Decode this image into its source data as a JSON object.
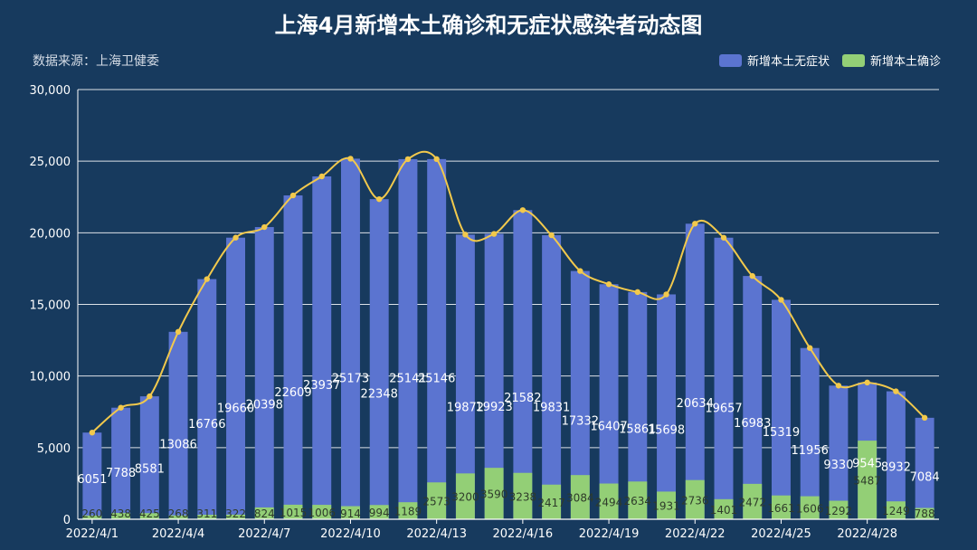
{
  "title": "上海4月新增本土确诊和无症状感染者动态图",
  "source": "数据来源：上海卫健委",
  "colors": {
    "background": "#173a5e",
    "asymptomatic": "#5b74d0",
    "confirmed": "#93cf76",
    "line": "#f2c94c",
    "grid": "#ffffff"
  },
  "chart_data": {
    "type": "bar",
    "stacked": true,
    "title": "上海4月新增本土确诊和无症状感染者动态图",
    "legend": [
      "新增本土无症状",
      "新增本土确诊"
    ],
    "legend_position": "top-right",
    "ylim": [
      0,
      30000
    ],
    "yticks": [
      "0",
      "5,000",
      "10,000",
      "15,000",
      "20,000",
      "25,000",
      "30,000"
    ],
    "ytick_values": [
      0,
      5000,
      10000,
      15000,
      20000,
      25000,
      30000
    ],
    "categories": [
      "2022/4/1",
      "2022/4/2",
      "2022/4/3",
      "2022/4/4",
      "2022/4/5",
      "2022/4/6",
      "2022/4/7",
      "2022/4/8",
      "2022/4/9",
      "2022/4/10",
      "2022/4/11",
      "2022/4/12",
      "2022/4/13",
      "2022/4/14",
      "2022/4/15",
      "2022/4/16",
      "2022/4/17",
      "2022/4/18",
      "2022/4/19",
      "2022/4/20",
      "2022/4/21",
      "2022/4/22",
      "2022/4/23",
      "2022/4/24",
      "2022/4/25",
      "2022/4/26",
      "2022/4/27",
      "2022/4/28",
      "2022/4/29",
      "2022/4/30"
    ],
    "xtick_labels": [
      "2022/4/1",
      "2022/4/4",
      "2022/4/7",
      "2022/4/10",
      "2022/4/13",
      "2022/4/16",
      "2022/4/19",
      "2022/4/22",
      "2022/4/25",
      "2022/4/28"
    ],
    "xtick_indices": [
      0,
      3,
      6,
      9,
      12,
      15,
      18,
      21,
      24,
      27
    ],
    "series": [
      {
        "name": "新增本土无症状",
        "values": [
          6051,
          7788,
          8581,
          13086,
          16766,
          19660,
          20398,
          22609,
          23937,
          25173,
          22348,
          25141,
          25146,
          19872,
          19923,
          21582,
          19831,
          17332,
          16407,
          15861,
          15698,
          20634,
          19657,
          16983,
          15319,
          11956,
          9330,
          9545,
          8932,
          7084
        ],
        "labels": [
          "6051",
          "7788",
          "8581",
          "13086",
          "16766",
          "19660",
          "20398",
          "22609",
          "23937",
          "25173",
          "22348",
          "25141",
          "25146",
          "19872",
          "19923",
          "21582",
          "19831",
          "17332",
          "16407",
          "15861",
          "15698",
          "20634",
          "19657",
          "16983",
          "15319",
          "11956",
          "9330",
          "9545",
          "8932",
          "7084"
        ]
      },
      {
        "name": "新增本土确诊",
        "values": [
          260,
          438,
          425,
          268,
          311,
          322,
          824,
          1015,
          1006,
          914,
          994,
          1189,
          2573,
          3200,
          3590,
          3238,
          2417,
          3084,
          2494,
          2634,
          1931,
          2736,
          1401,
          2472,
          1661,
          1606,
          1292,
          5487,
          1249,
          788
        ],
        "labels": [
          "260",
          "438",
          "425",
          "268",
          "311",
          "322",
          "824",
          "1015",
          "1006",
          "914",
          "994",
          "1189",
          "2573",
          "3200",
          "3590",
          "3238",
          "2417",
          "3084",
          "2494",
          "2634",
          "1931",
          "2736",
          "1401",
          "2472",
          "1661",
          "1606",
          "1292",
          "5487",
          "1249",
          "788"
        ]
      }
    ],
    "line": {
      "name": "新增本土无症状",
      "values": [
        6051,
        7788,
        8581,
        13086,
        16766,
        19660,
        20398,
        22609,
        23937,
        25173,
        22348,
        25141,
        25146,
        19872,
        19923,
        21582,
        19831,
        17332,
        16407,
        15861,
        15698,
        20634,
        19657,
        16983,
        15319,
        11956,
        9330,
        9545,
        8932,
        7084
      ]
    }
  }
}
